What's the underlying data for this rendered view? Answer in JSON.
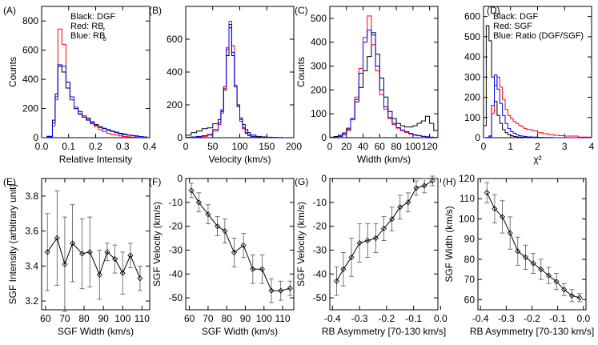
{
  "chart_data": [
    {
      "panel_label": "(A)",
      "type": "step-histogram",
      "xlabel": "Relative Intensity",
      "ylabel": "Counts",
      "xlim": [
        0.0,
        0.4
      ],
      "ylim": [
        0,
        900
      ],
      "xticks": [
        "0.0",
        "0.1",
        "0.2",
        "0.3",
        "0.4"
      ],
      "yticks": [
        "0",
        "200",
        "400",
        "600",
        "800"
      ],
      "legend": [
        "Black: DGF",
        "Red: RB",
        "Blue: RB"
      ],
      "legend_subscripts": [
        "r",
        "b"
      ],
      "bin_edges": [
        0.0,
        0.02,
        0.04,
        0.05,
        0.06,
        0.075,
        0.09,
        0.105,
        0.12,
        0.135,
        0.15,
        0.165,
        0.18,
        0.195,
        0.21,
        0.225,
        0.24,
        0.255,
        0.27,
        0.285,
        0.3,
        0.315,
        0.33,
        0.345,
        0.36,
        0.375,
        0.39
      ],
      "series": [
        {
          "name": "DGF",
          "color": "#000000",
          "values": [
            0,
            10,
            120,
            300,
            490,
            450,
            340,
            260,
            200,
            180,
            150,
            135,
            110,
            90,
            75,
            65,
            55,
            45,
            38,
            30,
            25,
            18,
            15,
            12,
            8,
            5
          ]
        },
        {
          "name": "RB_r",
          "color": "#ff0000",
          "values": [
            0,
            5,
            80,
            260,
            745,
            640,
            380,
            260,
            210,
            165,
            150,
            125,
            95,
            75,
            55,
            42,
            30,
            22,
            18,
            12,
            8,
            6,
            4,
            3,
            2,
            1
          ]
        },
        {
          "name": "RB_b",
          "color": "#0000ff",
          "values": [
            0,
            8,
            100,
            280,
            500,
            490,
            380,
            280,
            200,
            160,
            140,
            120,
            100,
            85,
            70,
            62,
            50,
            42,
            34,
            26,
            22,
            18,
            14,
            10,
            8,
            5
          ]
        }
      ]
    },
    {
      "panel_label": "(B)",
      "type": "step-histogram",
      "xlabel": "Velocity (km/s)",
      "ylabel": "",
      "xlim": [
        0,
        200
      ],
      "ylim": [
        0,
        800
      ],
      "xticks": [
        "0",
        "50",
        "100",
        "150",
        "200"
      ],
      "yticks": [
        "0",
        "200",
        "400",
        "600"
      ],
      "bin_edges": [
        0,
        10,
        20,
        30,
        40,
        50,
        60,
        65,
        70,
        75,
        80,
        85,
        90,
        95,
        100,
        105,
        110,
        115,
        120,
        130,
        140,
        150,
        160,
        170,
        180
      ],
      "series": [
        {
          "name": "DGF",
          "color": "#000000",
          "values": [
            15,
            30,
            40,
            55,
            60,
            85,
            110,
            160,
            290,
            500,
            670,
            500,
            310,
            200,
            120,
            80,
            50,
            30,
            15,
            8,
            5,
            3,
            2,
            1
          ]
        },
        {
          "name": "RB_r",
          "color": "#ff0000",
          "values": [
            2,
            3,
            5,
            8,
            15,
            40,
            80,
            150,
            300,
            550,
            710,
            560,
            320,
            190,
            100,
            55,
            25,
            12,
            6,
            3,
            2,
            1,
            0,
            0
          ]
        },
        {
          "name": "RB_b",
          "color": "#0000ff",
          "values": [
            3,
            5,
            8,
            12,
            20,
            50,
            90,
            170,
            310,
            540,
            690,
            520,
            310,
            190,
            110,
            60,
            30,
            15,
            7,
            3,
            2,
            1,
            0,
            0
          ]
        }
      ]
    },
    {
      "panel_label": "(C)",
      "type": "step-histogram",
      "xlabel": "Width (km/s)",
      "ylabel": "Counts",
      "xlim": [
        0,
        130
      ],
      "ylim": [
        0,
        550
      ],
      "xticks": [
        "0",
        "20",
        "40",
        "60",
        "80",
        "100",
        "120"
      ],
      "xtick_values": [
        0,
        20,
        40,
        60,
        80,
        100,
        120
      ],
      "yticks": [
        "0",
        "100",
        "200",
        "300",
        "400",
        "500"
      ],
      "bin_edges": [
        0,
        5,
        10,
        15,
        20,
        25,
        30,
        35,
        40,
        45,
        50,
        55,
        60,
        65,
        70,
        75,
        80,
        85,
        90,
        95,
        100,
        105,
        110,
        115,
        120,
        125,
        130
      ],
      "series": [
        {
          "name": "DGF",
          "color": "#000000",
          "values": [
            2,
            5,
            10,
            20,
            40,
            80,
            150,
            210,
            280,
            340,
            440,
            350,
            250,
            170,
            110,
            80,
            60,
            50,
            45,
            45,
            50,
            60,
            70,
            90,
            60,
            30
          ]
        },
        {
          "name": "RB_r",
          "color": "#ff0000",
          "values": [
            1,
            2,
            5,
            12,
            30,
            75,
            170,
            290,
            420,
            510,
            390,
            280,
            180,
            120,
            80,
            55,
            40,
            30,
            22,
            15,
            10,
            8,
            5,
            3,
            2,
            1
          ]
        },
        {
          "name": "RB_b",
          "color": "#0000ff",
          "values": [
            1,
            3,
            6,
            14,
            35,
            80,
            160,
            270,
            400,
            450,
            430,
            300,
            200,
            130,
            85,
            60,
            42,
            32,
            25,
            18,
            12,
            9,
            6,
            4,
            2,
            1
          ]
        }
      ]
    },
    {
      "panel_label": "(D)",
      "type": "step-histogram",
      "xlabel": "χ²",
      "ylabel": "",
      "xlim": [
        0,
        4
      ],
      "ylim": [
        0,
        650
      ],
      "xticks": [
        "0",
        "1",
        "2",
        "3",
        "4"
      ],
      "yticks": [
        "0",
        "100",
        "200",
        "300",
        "400",
        "500",
        "600"
      ],
      "legend": [
        "Black: DGF",
        "Red: SGF",
        "Blue: Ratio (DGF/SGF)"
      ],
      "bin_edges": [
        0,
        0.1,
        0.2,
        0.3,
        0.4,
        0.5,
        0.6,
        0.7,
        0.8,
        0.9,
        1.0,
        1.1,
        1.2,
        1.3,
        1.4,
        1.5,
        1.6,
        1.8,
        2.0,
        2.2,
        2.4,
        2.6,
        2.8,
        3.0,
        3.5,
        4.0
      ],
      "series": [
        {
          "name": "DGF",
          "color": "#000000",
          "values": [
            60,
            555,
            480,
            300,
            180,
            110,
            70,
            40,
            25,
            15,
            10,
            6,
            4,
            3,
            2,
            1,
            1,
            0,
            0,
            0,
            0,
            0,
            0,
            0,
            0
          ]
        },
        {
          "name": "SGF",
          "color": "#ff0000",
          "values": [
            0,
            2,
            10,
            120,
            260,
            300,
            250,
            190,
            140,
            110,
            95,
            80,
            70,
            60,
            55,
            45,
            40,
            35,
            25,
            20,
            15,
            12,
            10,
            8,
            3
          ]
        },
        {
          "name": "Ratio (DGF/SGF)",
          "color": "#0000ff",
          "values": [
            0,
            0,
            5,
            160,
            310,
            240,
            170,
            110,
            70,
            45,
            30,
            22,
            15,
            10,
            8,
            6,
            4,
            3,
            2,
            1,
            1,
            0,
            0,
            0,
            0
          ]
        }
      ]
    },
    {
      "panel_label": "(E)",
      "type": "errorbar-line",
      "xlabel": "SGF Width (km/s)",
      "ylabel": "SGF Intensity (arbitrary unit)",
      "xlim": [
        58,
        114
      ],
      "ylim": [
        3.15,
        3.9
      ],
      "xticks": [
        "60",
        "70",
        "80",
        "90",
        "100",
        "110"
      ],
      "yticks": [
        "3.2",
        "3.4",
        "3.6",
        "3.8"
      ],
      "x": [
        61,
        66,
        70,
        74,
        79,
        83,
        88,
        92,
        96,
        100,
        104,
        109
      ],
      "y": [
        3.48,
        3.56,
        3.41,
        3.53,
        3.47,
        3.48,
        3.35,
        3.48,
        3.44,
        3.36,
        3.46,
        3.33
      ],
      "yerr": [
        0.22,
        0.27,
        0.27,
        0.22,
        0.2,
        0.2,
        0.14,
        0.05,
        0.08,
        0.12,
        0.07,
        0.07
      ]
    },
    {
      "panel_label": "(F)",
      "type": "errorbar-line",
      "xlabel": "SGF Width (km/s)",
      "ylabel": "SGF Velocity (km/s)",
      "xlim": [
        58,
        116
      ],
      "ylim": [
        -55,
        0
      ],
      "xticks": [
        "60",
        "70",
        "80",
        "90",
        "100",
        "110"
      ],
      "yticks": [
        "0",
        "-10",
        "-20",
        "-30",
        "-40",
        "-50"
      ],
      "x": [
        61,
        65,
        70,
        75,
        79,
        84,
        89,
        94,
        99,
        104,
        109,
        114
      ],
      "y": [
        -5,
        -10,
        -15,
        -20,
        -22,
        -31,
        -28,
        -38,
        -38,
        -47,
        -47,
        -46
      ],
      "yerr": [
        3,
        4,
        4,
        4,
        5,
        6,
        5,
        6,
        6,
        5,
        4,
        3
      ]
    },
    {
      "panel_label": "(G)",
      "type": "errorbar-line",
      "xlabel": "RB Asymmetry [70-130 km/s]",
      "ylabel": "SGF Velocity (km/s)",
      "xlim": [
        -0.41,
        -0.01
      ],
      "ylim": [
        -55,
        0
      ],
      "xticks": [
        "-0.4",
        "-0.3",
        "-0.2",
        "-0.1",
        "0.0"
      ],
      "yticks": [
        "0",
        "-10",
        "-20",
        "-30",
        "-40",
        "-50"
      ],
      "x": [
        -0.385,
        -0.36,
        -0.33,
        -0.3,
        -0.27,
        -0.24,
        -0.21,
        -0.18,
        -0.15,
        -0.12,
        -0.09,
        -0.06,
        -0.03
      ],
      "y": [
        -43,
        -38,
        -33,
        -27,
        -26,
        -25,
        -21,
        -17,
        -12,
        -10,
        -4,
        -3,
        -1
      ],
      "yerr": [
        6,
        7,
        8,
        8,
        7,
        6,
        5,
        5,
        5,
        4,
        3,
        3,
        2
      ]
    },
    {
      "panel_label": "(H)",
      "type": "errorbar-line",
      "xlabel": "RB Asymmetry [70-130 km/s]",
      "ylabel": "SGF Width (km/s)",
      "xlim": [
        -0.41,
        0.01
      ],
      "ylim": [
        55,
        120
      ],
      "xticks": [
        "-0.4",
        "-0.3",
        "-0.2",
        "-0.1",
        "0.0"
      ],
      "yticks": [
        "60",
        "70",
        "80",
        "90",
        "100",
        "110",
        "120"
      ],
      "x": [
        -0.375,
        -0.345,
        -0.315,
        -0.285,
        -0.255,
        -0.225,
        -0.195,
        -0.165,
        -0.135,
        -0.105,
        -0.075,
        -0.045,
        -0.015
      ],
      "y": [
        113,
        105,
        101,
        93,
        84,
        81,
        78,
        75,
        72,
        69,
        65,
        62,
        61
      ],
      "yerr": [
        5,
        7,
        8,
        8,
        7,
        6,
        5,
        5,
        4,
        4,
        3,
        3,
        2
      ]
    }
  ]
}
